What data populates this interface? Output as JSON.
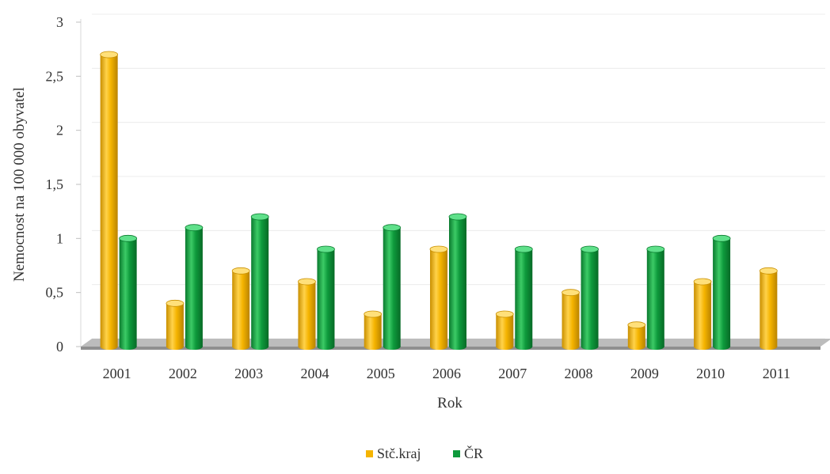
{
  "chart_data": {
    "type": "bar",
    "style": "3d-cylinder",
    "xlabel": "Rok",
    "ylabel": "Nemocnost na 100 000 obyvatel",
    "categories": [
      "2001",
      "2002",
      "2003",
      "2004",
      "2005",
      "2006",
      "2007",
      "2008",
      "2009",
      "2010",
      "2011"
    ],
    "ylim": [
      0,
      3
    ],
    "yticks": [
      0,
      0.5,
      1,
      1.5,
      2,
      2.5,
      3
    ],
    "ytick_labels": [
      "0",
      "0,5",
      "1",
      "1,5",
      "2",
      "2,5",
      "3"
    ],
    "grid": true,
    "legend_position": "bottom",
    "series": [
      {
        "name": "Stč.kraj",
        "color": "#F5B400",
        "values": [
          2.7,
          0.4,
          0.7,
          0.6,
          0.3,
          0.9,
          0.3,
          0.5,
          0.2,
          0.6,
          0.7
        ]
      },
      {
        "name": "ČR",
        "color": "#0E9A3C",
        "values": [
          1.0,
          1.1,
          1.2,
          0.9,
          1.1,
          1.2,
          0.9,
          0.9,
          0.9,
          1.0,
          null
        ]
      }
    ]
  }
}
